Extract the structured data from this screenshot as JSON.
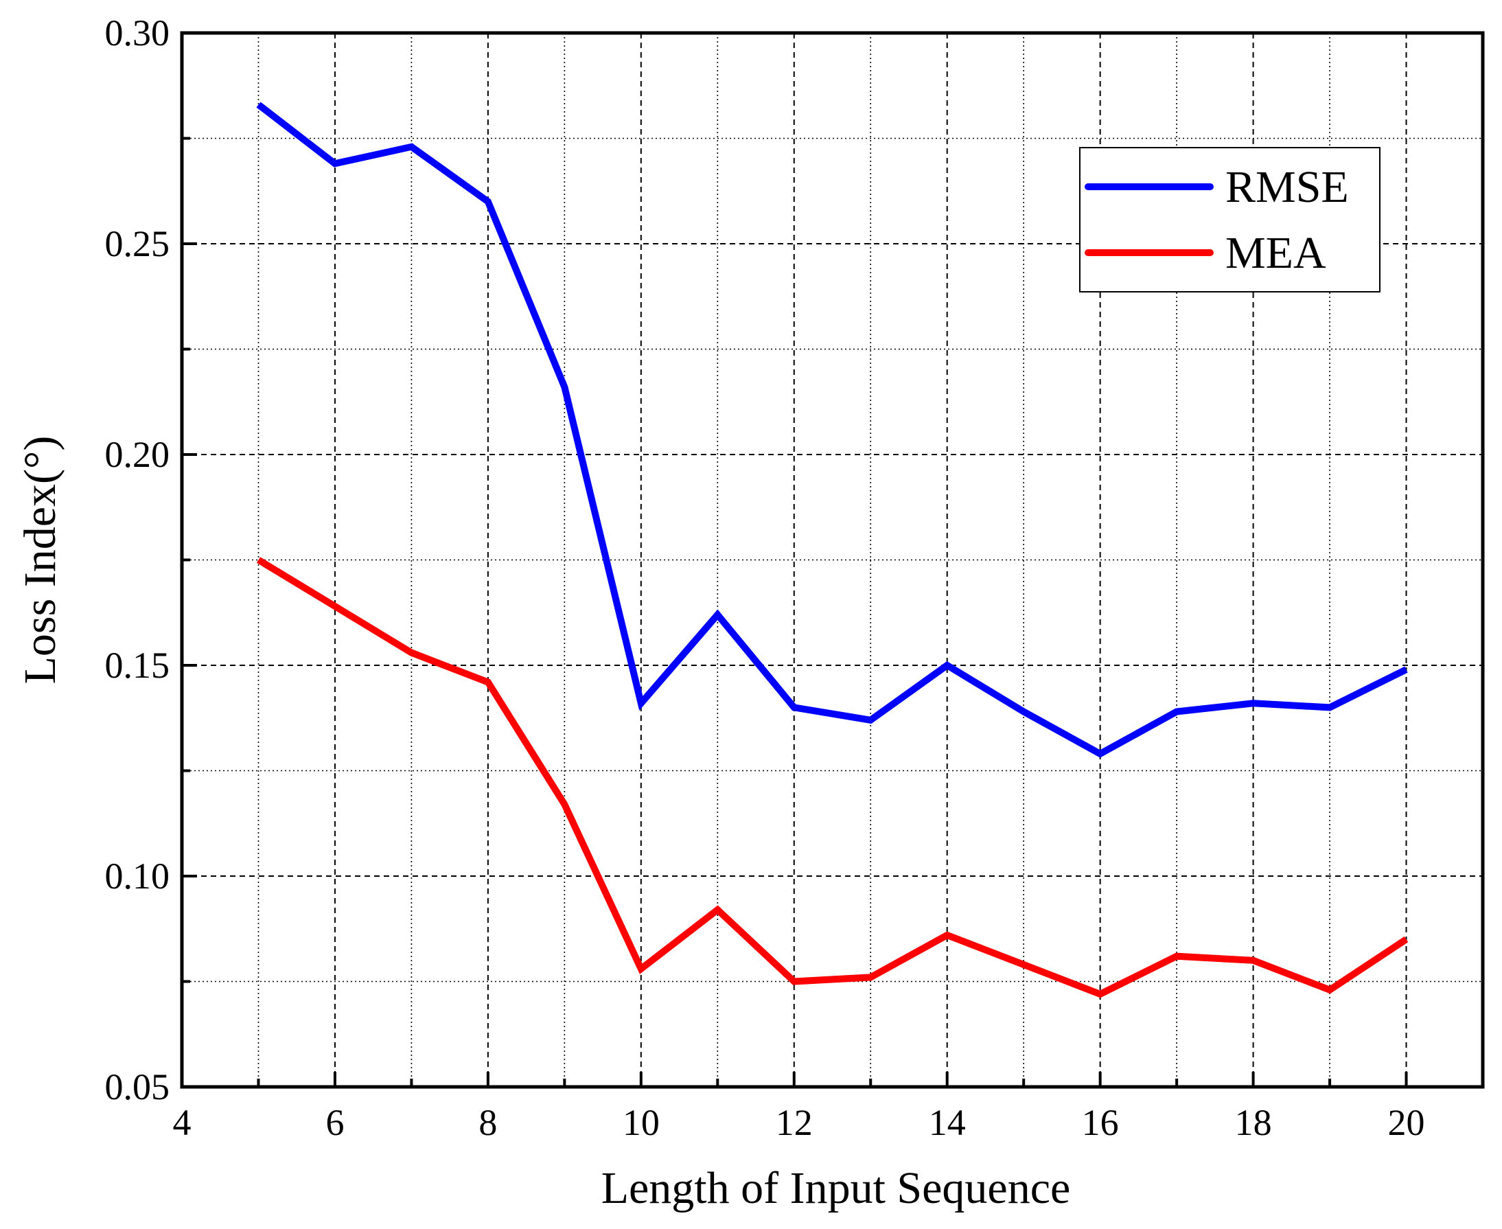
{
  "chart_data": {
    "type": "line",
    "title": "",
    "xlabel": "Length of  Input Sequence",
    "ylabel": "Loss Index(°)",
    "xlim": [
      4,
      21
    ],
    "ylim": [
      0.05,
      0.3
    ],
    "x_ticks": [
      4,
      6,
      8,
      10,
      12,
      14,
      16,
      18,
      20
    ],
    "x_tick_labels": [
      "4",
      "6",
      "8",
      "10",
      "12",
      "14",
      "16",
      "18",
      "20"
    ],
    "y_ticks": [
      0.05,
      0.1,
      0.15,
      0.2,
      0.25,
      0.3
    ],
    "y_tick_labels": [
      "0.05",
      "0.10",
      "0.15",
      "0.20",
      "0.25",
      "0.30"
    ],
    "grid": true,
    "legend_position": "top-right",
    "x": [
      5,
      6,
      7,
      8,
      9,
      10,
      11,
      12,
      13,
      14,
      15,
      16,
      17,
      18,
      19,
      20
    ],
    "series": [
      {
        "name": "RMSE",
        "color": "#0000ff",
        "values": [
          0.283,
          0.269,
          0.273,
          0.26,
          0.216,
          0.141,
          0.162,
          0.14,
          0.137,
          0.15,
          0.139,
          0.129,
          0.139,
          0.141,
          0.14,
          0.149
        ]
      },
      {
        "name": "MEA",
        "color": "#ff0000",
        "values": [
          0.175,
          0.164,
          0.153,
          0.146,
          0.117,
          0.078,
          0.092,
          0.075,
          0.076,
          0.086,
          0.079,
          0.072,
          0.081,
          0.08,
          0.073,
          0.085
        ]
      }
    ]
  }
}
